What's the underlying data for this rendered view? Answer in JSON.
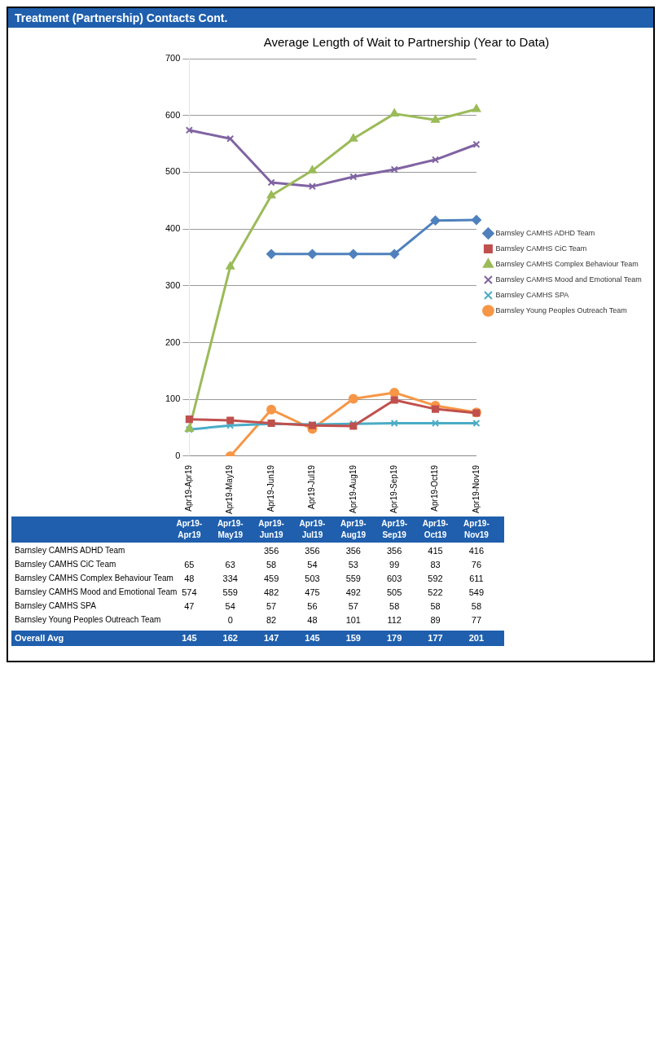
{
  "chart_data": {
    "type": "line",
    "title": "Treatment (Partnership) Contacts Cont.",
    "subtitle": "Average Length of Wait to Partnership (Year to Data)",
    "categories": [
      "Apr19-Apr19",
      "Apr19-May19",
      "Apr19-Jun19",
      "Apr19-Jul19",
      "Apr19-Aug19",
      "Apr19-Sep19",
      "Apr19-Oct19",
      "Apr19-Nov19"
    ],
    "series": [
      {
        "name": "Barnsley CAMHS ADHD Team",
        "color": "#4f81bd",
        "marker": "diamond",
        "values": [
          null,
          null,
          356,
          356,
          356,
          356,
          415,
          416
        ]
      },
      {
        "name": "Barnsley CAMHS CiC Team",
        "color": "#c0504d",
        "marker": "square",
        "values": [
          65,
          63,
          58,
          54,
          53,
          99,
          83,
          76
        ]
      },
      {
        "name": "Barnsley CAMHS Complex Behaviour Team",
        "color": "#9bbb59",
        "marker": "triangle",
        "values": [
          48,
          334,
          459,
          503,
          559,
          603,
          592,
          611
        ]
      },
      {
        "name": "Barnsley CAMHS Mood and Emotional Team",
        "color": "#8064a2",
        "marker": "cross",
        "values": [
          574,
          559,
          482,
          475,
          492,
          505,
          522,
          549
        ]
      },
      {
        "name": "Barnsley CAMHS SPA",
        "color": "#4bacc6",
        "marker": "cross",
        "values": [
          47,
          54,
          57,
          56,
          57,
          58,
          58,
          58
        ]
      },
      {
        "name": "Barnsley Young Peoples Outreach Team",
        "color": "#f79646",
        "marker": "circle",
        "values": [
          null,
          0,
          82,
          48,
          101,
          112,
          89,
          77
        ]
      }
    ],
    "ylim": [
      0,
      700
    ],
    "yticks": [
      0,
      100,
      200,
      300,
      400,
      500,
      600,
      700
    ],
    "grid": "y",
    "legend": "right",
    "data_labels": true,
    "annotations": [
      "Overall Avg",
      "145",
      "162",
      "147",
      "145",
      "159",
      "179",
      "177",
      "201"
    ]
  }
}
